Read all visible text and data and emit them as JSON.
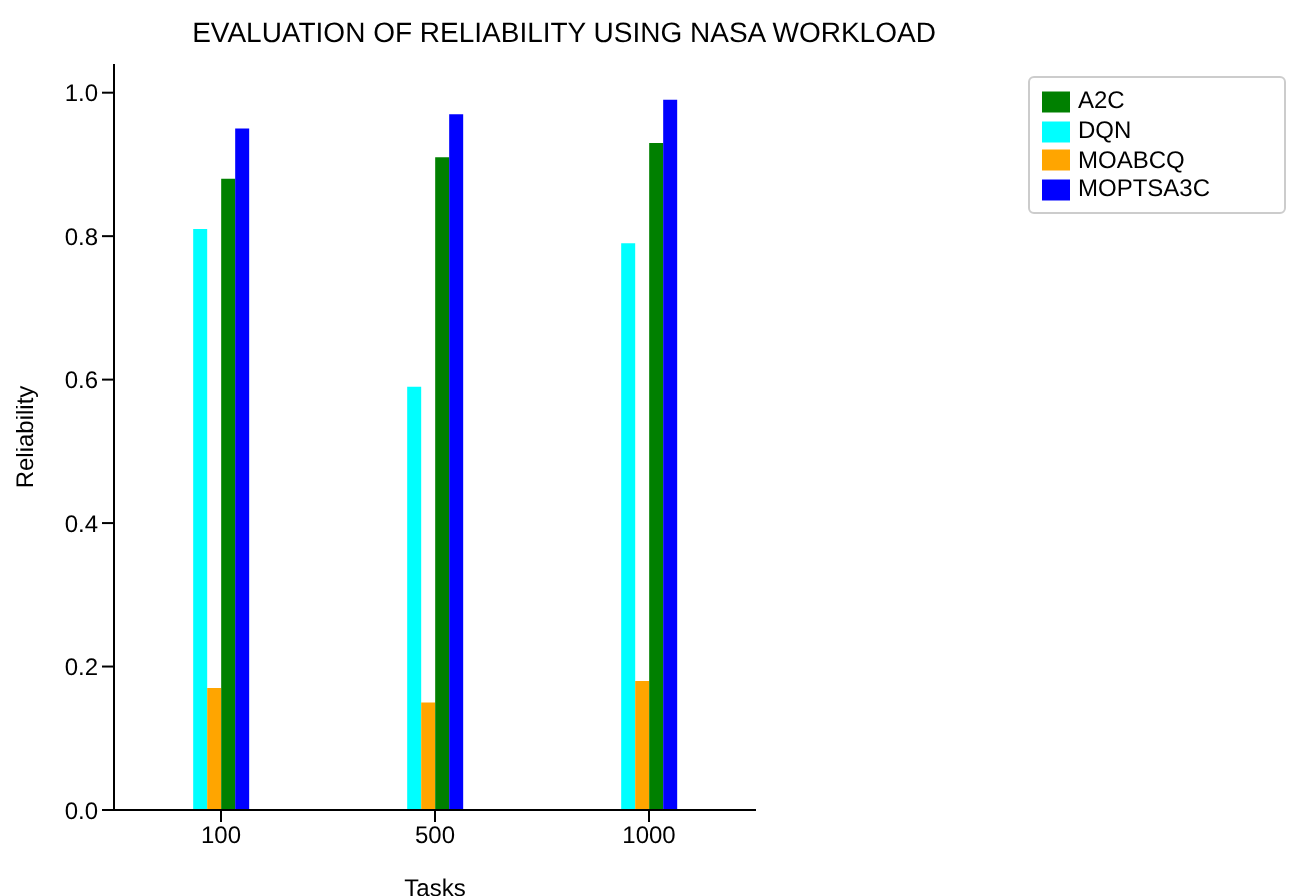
{
  "chart_data": {
    "type": "bar",
    "title": "EVALUATION OF RELIABILITY USING NASA WORKLOAD",
    "xlabel": "Tasks",
    "ylabel": "Reliability",
    "categories": [
      "100",
      "500",
      "1000"
    ],
    "series": [
      {
        "name": "DQN",
        "color": "#00ffff",
        "values": [
          0.81,
          0.59,
          0.79
        ]
      },
      {
        "name": "MOABCQ",
        "color": "#ffa500",
        "values": [
          0.17,
          0.15,
          0.18
        ]
      },
      {
        "name": "A2C",
        "color": "#008000",
        "values": [
          0.88,
          0.91,
          0.93
        ]
      },
      {
        "name": "MOPTSA3C",
        "color": "#0000ff",
        "values": [
          0.95,
          0.97,
          0.99
        ]
      }
    ],
    "ylim": [
      0,
      1.04
    ],
    "yticks": [
      {
        "value": 0,
        "label": "0.0"
      },
      {
        "value": 0.2,
        "label": "0.2"
      },
      {
        "value": 0.4,
        "label": "0.4"
      },
      {
        "value": 0.6,
        "label": "0.6"
      },
      {
        "value": 0.8,
        "label": "0.8"
      },
      {
        "value": 1,
        "label": "1.0"
      }
    ],
    "legend": "top right",
    "grid": false
  }
}
